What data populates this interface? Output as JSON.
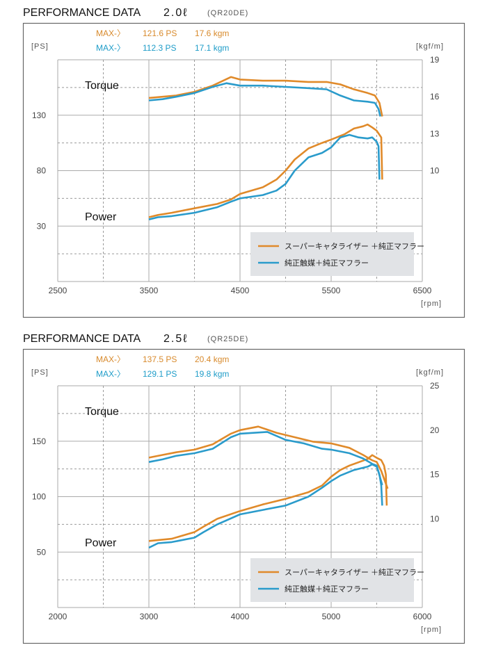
{
  "colors": {
    "orange": "#E08A2A",
    "blue": "#2A9BCB",
    "orange_text": "#D88A2C",
    "blue_text": "#1E9CC8",
    "legend_bg": "#E1E3E6"
  },
  "chart_data": [
    {
      "type": "line",
      "title": "PERFORMANCE DATA",
      "displacement": "2.0ℓ",
      "engine": "(QR20DE)",
      "xlabel": "[rpm]",
      "ylabel_left": "[PS]",
      "ylabel_right": "[kgf/m]",
      "xlim": [
        2500,
        6500
      ],
      "ylim_left": [
        -20,
        180
      ],
      "ylim_right": [
        1,
        19
      ],
      "x_ticks": [
        "2500",
        "3500",
        "4500",
        "5500",
        "6500"
      ],
      "x_tick_values": [
        2500,
        3500,
        4500,
        5500,
        6500
      ],
      "y_ticks_left": [
        "130",
        "80",
        "30"
      ],
      "y_tick_values_left": [
        130,
        80,
        30
      ],
      "y_ticks_right": [
        "19",
        "16",
        "13",
        "10"
      ],
      "y_tick_values_right": [
        19,
        16,
        13,
        10
      ],
      "grid": true,
      "curve_labels": {
        "torque": "Torque",
        "power": "Power"
      },
      "max": [
        {
          "prefix": "MAX-〉",
          "power": "121.6 PS",
          "torque": "17.6 kgm",
          "color": "orange"
        },
        {
          "prefix": "MAX-〉",
          "power": "112.3 PS",
          "torque": "17.1 kgm",
          "color": "blue"
        }
      ],
      "legend": {
        "placement": "bottom-right",
        "entries": [
          "スーパーキャタライザー ＋純正マフラー",
          "純正触媒＋純正マフラー"
        ]
      },
      "series": [
        {
          "name": "スーパーキャタライザー ＋純正マフラー",
          "kind": "power",
          "color": "orange",
          "x": [
            3500,
            3600,
            3750,
            4000,
            4250,
            4400,
            4500,
            4750,
            4900,
            5000,
            5100,
            5250,
            5400,
            5500,
            5650,
            5750,
            5850,
            5900,
            5950,
            6000,
            6050,
            6060
          ],
          "y": [
            38,
            40,
            42,
            46,
            50,
            54,
            59,
            65,
            72,
            80,
            90,
            100,
            105,
            108,
            113,
            118,
            120,
            121.6,
            119,
            116,
            110,
            72
          ]
        },
        {
          "name": "純正触媒＋純正マフラー",
          "kind": "power",
          "color": "blue",
          "x": [
            3500,
            3600,
            3750,
            4000,
            4250,
            4400,
            4500,
            4750,
            4900,
            5000,
            5100,
            5250,
            5400,
            5500,
            5600,
            5700,
            5800,
            5900,
            5950,
            6000,
            6020,
            6030
          ],
          "y": [
            36,
            38,
            39,
            42,
            47,
            52,
            55,
            58,
            62,
            68,
            80,
            92,
            96,
            101,
            110,
            112.3,
            110,
            109,
            110,
            106,
            102,
            72
          ]
        },
        {
          "name": "スーパーキャタライザー ＋純正マフラー",
          "kind": "torque",
          "color": "orange",
          "x": [
            3500,
            3650,
            3800,
            4000,
            4200,
            4400,
            4500,
            4750,
            5000,
            5250,
            5450,
            5600,
            5750,
            5900,
            5980,
            6030,
            6060
          ],
          "y": [
            15.9,
            16.0,
            16.1,
            16.4,
            16.9,
            17.6,
            17.4,
            17.3,
            17.3,
            17.2,
            17.2,
            17.0,
            16.6,
            16.3,
            16.1,
            15.5,
            14.4
          ]
        },
        {
          "name": "純正触媒＋純正マフラー",
          "kind": "torque",
          "color": "blue",
          "x": [
            3500,
            3650,
            3800,
            4000,
            4200,
            4350,
            4500,
            4750,
            5000,
            5250,
            5450,
            5600,
            5750,
            5900,
            5980,
            6020,
            6040
          ],
          "y": [
            15.7,
            15.8,
            16.0,
            16.3,
            16.8,
            17.1,
            16.9,
            16.9,
            16.8,
            16.7,
            16.6,
            16.1,
            15.7,
            15.6,
            15.5,
            15.0,
            14.4
          ]
        }
      ]
    },
    {
      "type": "line",
      "title": "PERFORMANCE DATA",
      "displacement": "2.5ℓ",
      "engine": "(QR25DE)",
      "xlabel": "[rpm]",
      "ylabel_left": "[PS]",
      "ylabel_right": "[kgf/m]",
      "xlim": [
        2000,
        6000
      ],
      "ylim_left": [
        0,
        200
      ],
      "ylim_right": [
        0,
        25
      ],
      "x_ticks": [
        "2000",
        "3000",
        "4000",
        "5000",
        "6000"
      ],
      "x_tick_values": [
        2000,
        3000,
        4000,
        5000,
        6000
      ],
      "y_ticks_left": [
        "150",
        "100",
        "50"
      ],
      "y_tick_values_left": [
        150,
        100,
        50
      ],
      "y_ticks_right": [
        "25",
        "20",
        "15",
        "10"
      ],
      "y_tick_values_right": [
        25,
        20,
        15,
        10
      ],
      "grid": true,
      "curve_labels": {
        "torque": "Torque",
        "power": "Power"
      },
      "max": [
        {
          "prefix": "MAX-〉",
          "power": "137.5 PS",
          "torque": "20.4 kgm",
          "color": "orange"
        },
        {
          "prefix": "MAX-〉",
          "power": "129.1 PS",
          "torque": "19.8 kgm",
          "color": "blue"
        }
      ],
      "legend": {
        "placement": "bottom-right",
        "entries": [
          "スーパーキャタライザー ＋純正マフラー",
          "純正触媒＋純正マフラー"
        ]
      },
      "series": [
        {
          "name": "スーパーキャタライザー ＋純正マフラー",
          "kind": "power",
          "color": "orange",
          "x": [
            3000,
            3250,
            3500,
            3600,
            3750,
            4000,
            4250,
            4500,
            4750,
            4900,
            5000,
            5100,
            5200,
            5400,
            5450,
            5500,
            5550,
            5580,
            5600,
            5610
          ],
          "y": [
            60,
            62,
            68,
            73,
            80,
            87,
            93,
            98,
            104,
            110,
            118,
            124,
            128,
            134,
            137.5,
            135,
            133,
            128,
            120,
            92
          ]
        },
        {
          "name": "純正触媒＋純正マフラー",
          "kind": "power",
          "color": "blue",
          "x": [
            3000,
            3100,
            3250,
            3500,
            3600,
            3750,
            4000,
            4250,
            4500,
            4750,
            4900,
            5000,
            5100,
            5250,
            5400,
            5450,
            5500,
            5530,
            5550,
            5560
          ],
          "y": [
            54,
            58,
            59,
            63,
            68,
            75,
            84,
            88,
            92,
            100,
            108,
            114,
            119,
            124,
            127,
            129.1,
            127,
            120,
            110,
            92
          ]
        },
        {
          "name": "スーパーキャタライザー ＋純正マフラー",
          "kind": "torque",
          "color": "orange",
          "x": [
            3000,
            3150,
            3300,
            3500,
            3700,
            3900,
            4000,
            4200,
            4400,
            4600,
            4800,
            5000,
            5200,
            5350,
            5450,
            5500,
            5550,
            5620
          ],
          "y": [
            16.9,
            17.2,
            17.5,
            17.8,
            18.4,
            19.6,
            20.0,
            20.4,
            19.7,
            19.2,
            18.7,
            18.5,
            18.0,
            17.2,
            16.6,
            16.4,
            15.4,
            13.4
          ]
        },
        {
          "name": "純正触媒＋純正マフラー",
          "kind": "torque",
          "color": "blue",
          "x": [
            3000,
            3150,
            3300,
            3500,
            3700,
            3900,
            4000,
            4300,
            4500,
            4700,
            4900,
            5000,
            5200,
            5350,
            5450,
            5500,
            5560
          ],
          "y": [
            16.4,
            16.7,
            17.1,
            17.4,
            17.9,
            19.2,
            19.6,
            19.8,
            18.9,
            18.5,
            17.9,
            17.8,
            17.4,
            16.8,
            16.2,
            16.0,
            13.8
          ]
        }
      ]
    }
  ]
}
